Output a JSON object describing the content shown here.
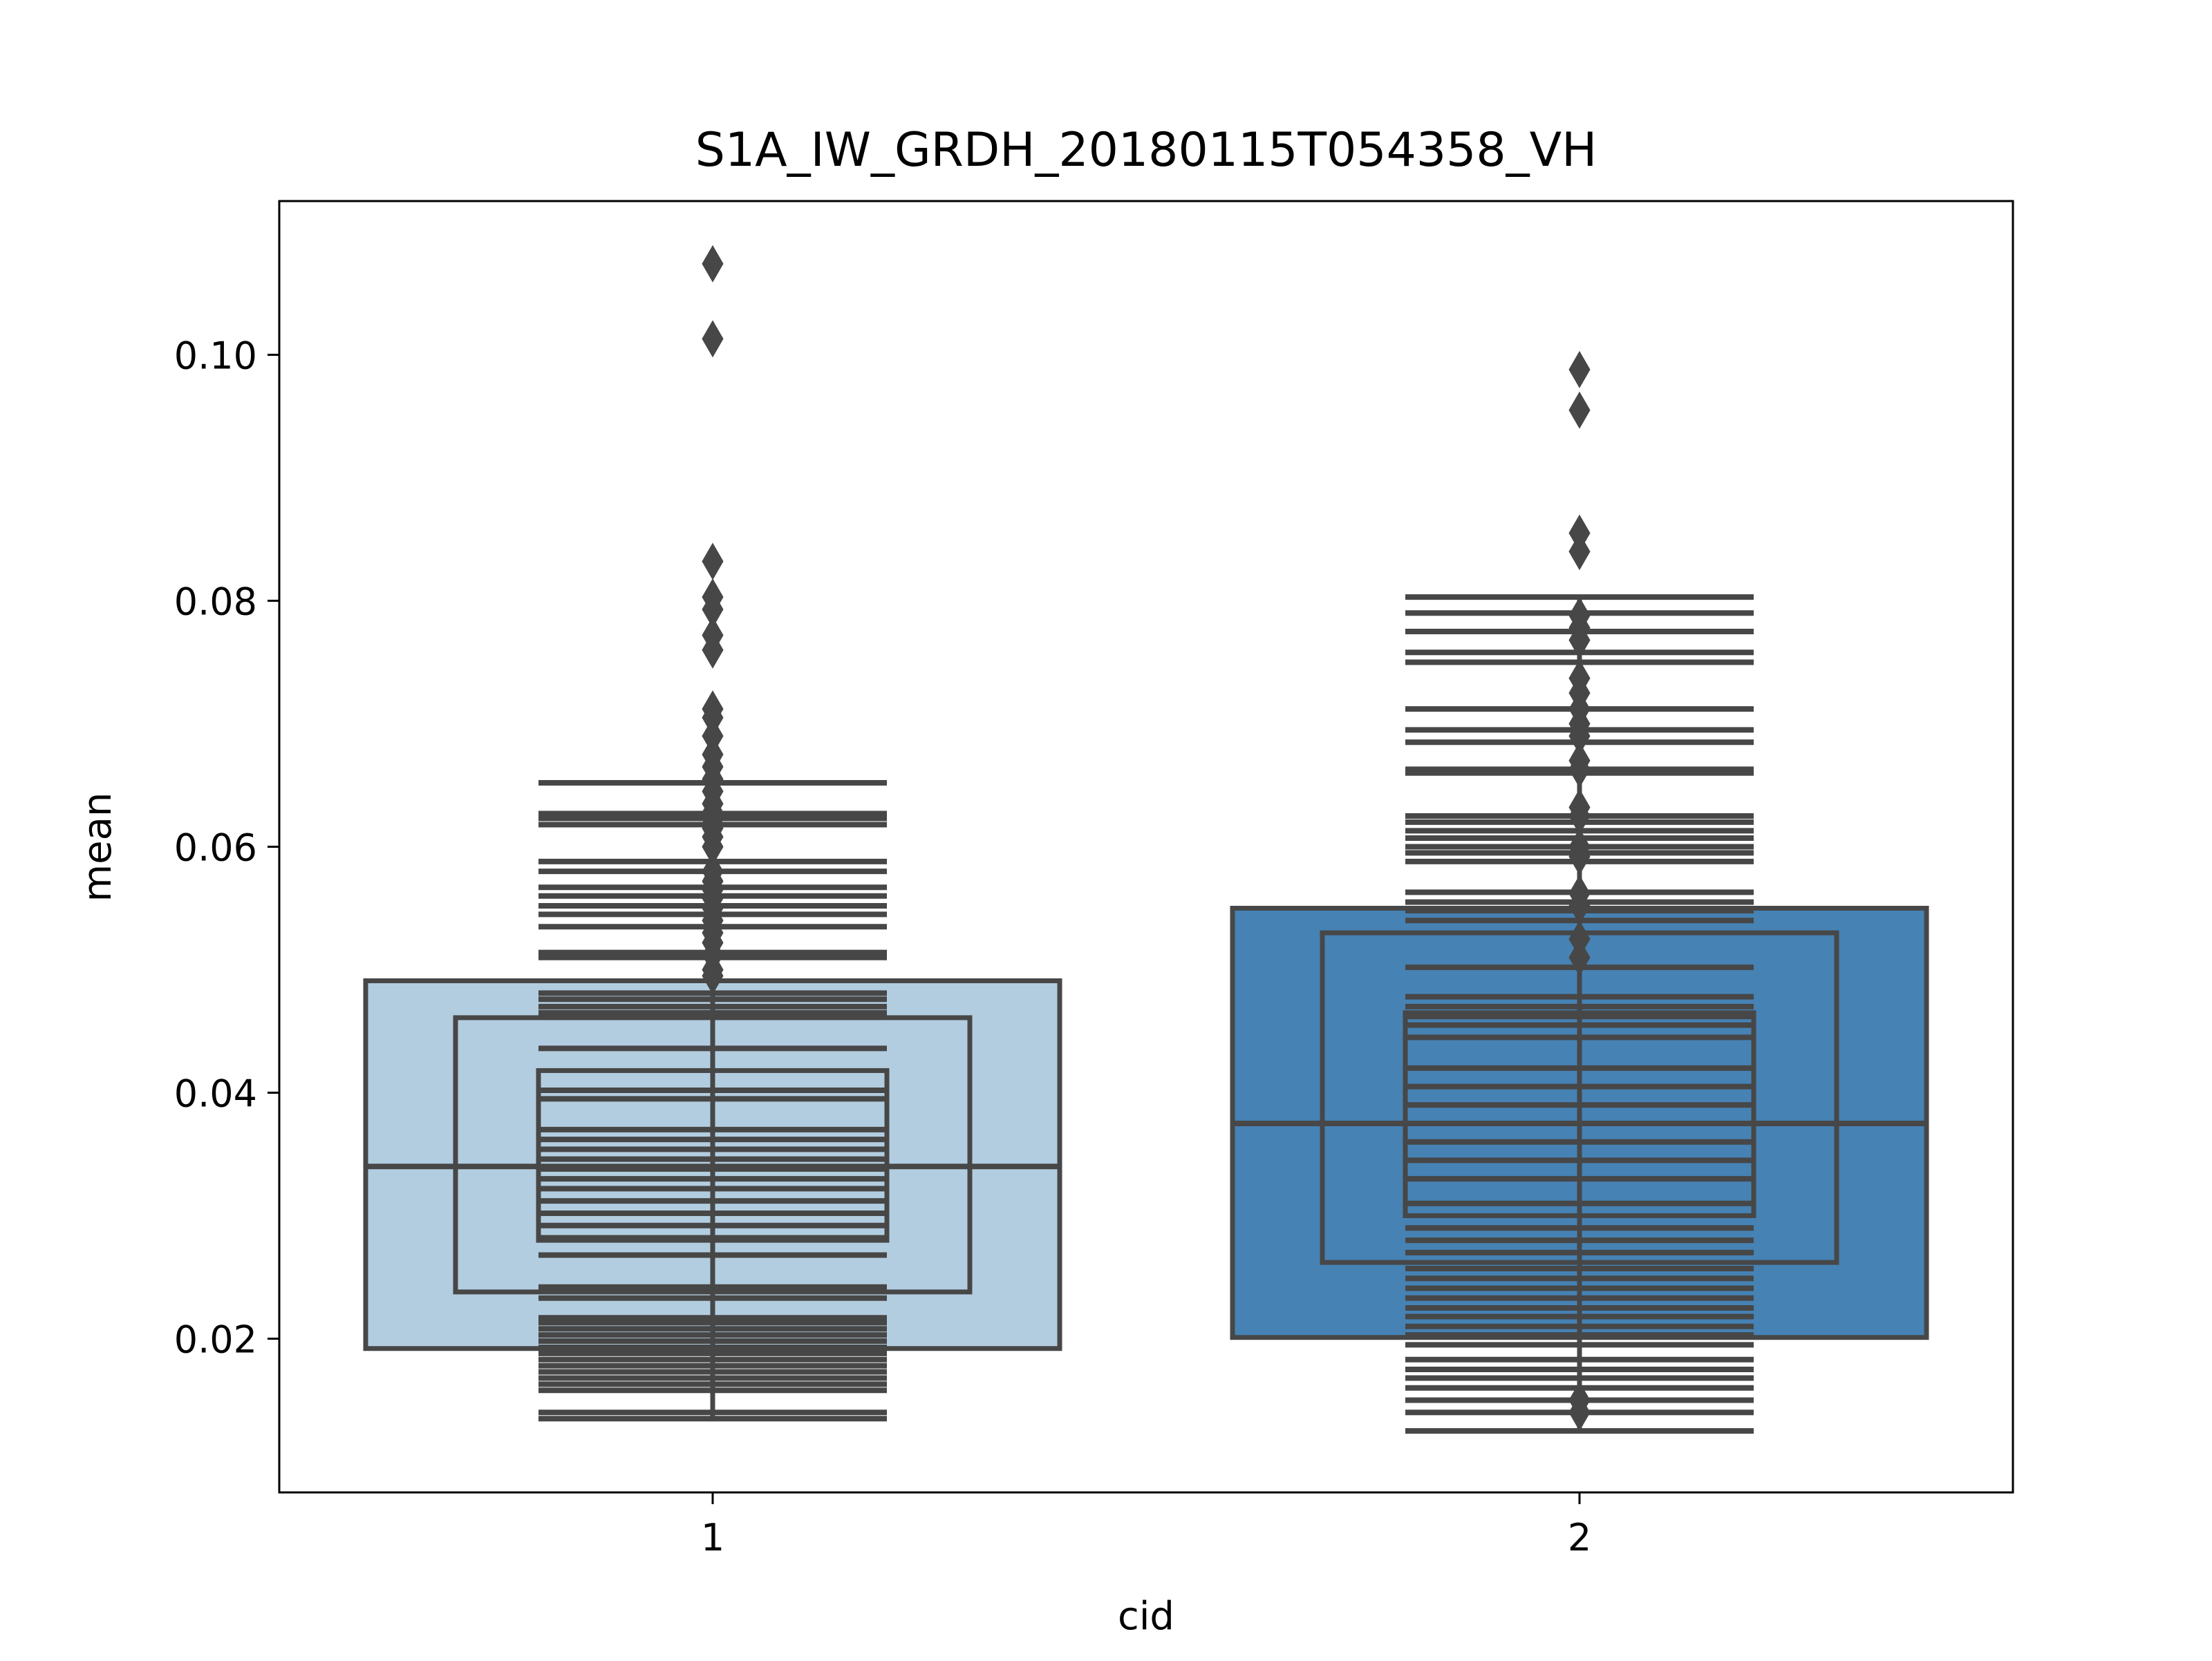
{
  "chart_data": {
    "type": "boxen",
    "title": "S1A_IW_GRDH_20180115T054358_VH",
    "xlabel": "cid",
    "ylabel": "mean",
    "categories": [
      "1",
      "2"
    ],
    "ylim": [
      0.0075,
      0.1125
    ],
    "yticks": [
      0.02,
      0.04,
      0.06,
      0.08,
      0.1
    ],
    "ytick_labels": [
      "0.02",
      "0.04",
      "0.06",
      "0.08",
      "0.10"
    ],
    "grid": false,
    "legend": "none",
    "colors": {
      "box_1": "#b3cde0",
      "box_2": "#4682b4",
      "stroke": "#474747",
      "axes": "#000000"
    },
    "series": [
      {
        "category": "1",
        "median": 0.034,
        "whisker": [
          0.0135,
          0.065
        ],
        "boxes": [
          {
            "low": 0.0192,
            "high": 0.0491
          },
          {
            "low": 0.0238,
            "high": 0.0461
          },
          {
            "low": 0.028,
            "high": 0.0418
          }
        ],
        "lines": [
          0.0135,
          0.014,
          0.0158,
          0.0163,
          0.0168,
          0.0173,
          0.0178,
          0.0183,
          0.0188,
          0.0193,
          0.0198,
          0.0203,
          0.0208,
          0.0213,
          0.0217,
          0.0233,
          0.0242,
          0.0268,
          0.0282,
          0.0292,
          0.0302,
          0.0312,
          0.0322,
          0.033,
          0.0338,
          0.0346,
          0.0354,
          0.0362,
          0.037,
          0.0395,
          0.0402,
          0.0436,
          0.0465,
          0.047,
          0.0476,
          0.0481,
          0.051,
          0.0514,
          0.0535,
          0.0545,
          0.0552,
          0.056,
          0.0567,
          0.058,
          0.0588,
          0.0618,
          0.0623,
          0.0627,
          0.0652
        ],
        "outliers": [
          0.1074,
          0.1013,
          0.0832,
          0.0803,
          0.0793,
          0.0772,
          0.076,
          0.0712,
          0.0705,
          0.069,
          0.0675,
          0.0665,
          0.0655,
          0.0645,
          0.0635,
          0.0628,
          0.0622,
          0.0615,
          0.0608,
          0.06,
          0.058,
          0.0572,
          0.0565,
          0.0558,
          0.055,
          0.054,
          0.053,
          0.0522,
          0.0512,
          0.05,
          0.0495
        ]
      },
      {
        "category": "2",
        "median": 0.0375,
        "whisker": [
          0.0125,
          0.0803
        ],
        "boxes": [
          {
            "low": 0.0201,
            "high": 0.055
          },
          {
            "low": 0.0262,
            "high": 0.053
          },
          {
            "low": 0.03,
            "high": 0.0465
          }
        ],
        "lines": [
          0.0125,
          0.014,
          0.015,
          0.016,
          0.0168,
          0.0175,
          0.0183,
          0.0195,
          0.0203,
          0.021,
          0.0218,
          0.0225,
          0.0233,
          0.0241,
          0.0249,
          0.0257,
          0.027,
          0.028,
          0.029,
          0.031,
          0.033,
          0.0345,
          0.036,
          0.0375,
          0.039,
          0.0405,
          0.042,
          0.0445,
          0.0455,
          0.0462,
          0.047,
          0.0478,
          0.0502,
          0.054,
          0.0548,
          0.0555,
          0.0563,
          0.0588,
          0.0595,
          0.06,
          0.0607,
          0.0613,
          0.062,
          0.0625,
          0.066,
          0.0663,
          0.0685,
          0.0695,
          0.0712,
          0.075,
          0.0758,
          0.0775,
          0.079,
          0.0803
        ],
        "outliers": [
          0.0988,
          0.0955,
          0.0855,
          0.084,
          0.0788,
          0.0778,
          0.0768,
          0.0737,
          0.0725,
          0.0712,
          0.07,
          0.069,
          0.067,
          0.0663,
          0.0632,
          0.0625,
          0.06,
          0.0592,
          0.0562,
          0.0552,
          0.0525,
          0.051,
          0.015,
          0.014
        ]
      }
    ]
  }
}
